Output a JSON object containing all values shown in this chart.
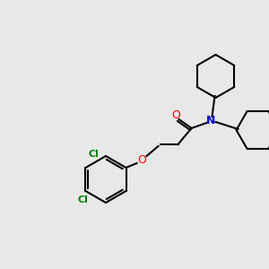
{
  "background_color": "#e8e8e8",
  "bond_color": "#000000",
  "atom_colors": {
    "O_carbonyl": "#ff0000",
    "O_ether": "#ff0000",
    "N": "#0000cd",
    "Cl": "#008000",
    "C": "#000000"
  },
  "lw": 1.5
}
